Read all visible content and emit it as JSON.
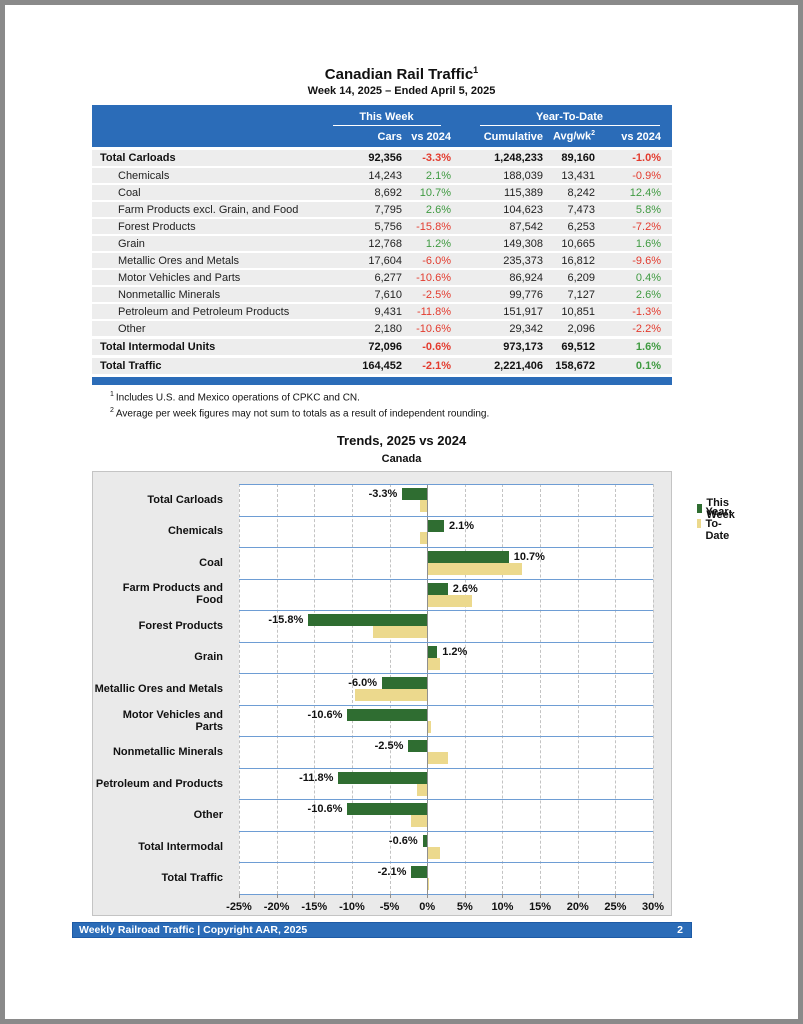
{
  "page": {
    "title": "Canadian Rail Traffic",
    "title_sup": "1",
    "subtitle": "Week 14, 2025 – Ended April 5, 2025"
  },
  "table": {
    "group_headers": {
      "this_week": "This Week",
      "ytd": "Year-To-Date"
    },
    "col_headers": {
      "cars": "Cars",
      "wk_vs": "vs 2024",
      "cumulative": "Cumulative",
      "avgwk": "Avg/wk",
      "avgwk_sup": "2",
      "ytd_vs": "vs 2024"
    },
    "rows": [
      {
        "label": "Total Carloads",
        "total": true,
        "cars": "92,356",
        "wk_pct": "-3.3%",
        "cumulative": "1,248,233",
        "avgwk": "89,160",
        "ytd_pct": "-1.0%"
      },
      {
        "label": "Chemicals",
        "total": false,
        "cars": "14,243",
        "wk_pct": "2.1%",
        "cumulative": "188,039",
        "avgwk": "13,431",
        "ytd_pct": "-0.9%"
      },
      {
        "label": "Coal",
        "total": false,
        "cars": "8,692",
        "wk_pct": "10.7%",
        "cumulative": "115,389",
        "avgwk": "8,242",
        "ytd_pct": "12.4%"
      },
      {
        "label": "Farm Products excl. Grain, and Food",
        "total": false,
        "cars": "7,795",
        "wk_pct": "2.6%",
        "cumulative": "104,623",
        "avgwk": "7,473",
        "ytd_pct": "5.8%"
      },
      {
        "label": "Forest Products",
        "total": false,
        "cars": "5,756",
        "wk_pct": "-15.8%",
        "cumulative": "87,542",
        "avgwk": "6,253",
        "ytd_pct": "-7.2%"
      },
      {
        "label": "Grain",
        "total": false,
        "cars": "12,768",
        "wk_pct": "1.2%",
        "cumulative": "149,308",
        "avgwk": "10,665",
        "ytd_pct": "1.6%"
      },
      {
        "label": "Metallic Ores and Metals",
        "total": false,
        "cars": "17,604",
        "wk_pct": "-6.0%",
        "cumulative": "235,373",
        "avgwk": "16,812",
        "ytd_pct": "-9.6%"
      },
      {
        "label": "Motor Vehicles and Parts",
        "total": false,
        "cars": "6,277",
        "wk_pct": "-10.6%",
        "cumulative": "86,924",
        "avgwk": "6,209",
        "ytd_pct": "0.4%"
      },
      {
        "label": "Nonmetallic Minerals",
        "total": false,
        "cars": "7,610",
        "wk_pct": "-2.5%",
        "cumulative": "99,776",
        "avgwk": "7,127",
        "ytd_pct": "2.6%"
      },
      {
        "label": "Petroleum and Petroleum Products",
        "total": false,
        "cars": "9,431",
        "wk_pct": "-11.8%",
        "cumulative": "151,917",
        "avgwk": "10,851",
        "ytd_pct": "-1.3%"
      },
      {
        "label": "Other",
        "total": false,
        "cars": "2,180",
        "wk_pct": "-10.6%",
        "cumulative": "29,342",
        "avgwk": "2,096",
        "ytd_pct": "-2.2%"
      },
      {
        "label": "Total Intermodal Units",
        "total": true,
        "cars": "72,096",
        "wk_pct": "-0.6%",
        "cumulative": "973,173",
        "avgwk": "69,512",
        "ytd_pct": "1.6%"
      },
      {
        "label": "Total Traffic",
        "total": true,
        "cars": "164,452",
        "wk_pct": "-2.1%",
        "cumulative": "2,221,406",
        "avgwk": "158,672",
        "ytd_pct": "0.1%"
      }
    ]
  },
  "footnotes": [
    {
      "sup": "1",
      "text": "Includes U.S. and Mexico operations of CPKC and CN."
    },
    {
      "sup": "2",
      "text": "Average per week figures may not sum to totals as a result of independent rounding."
    }
  ],
  "chart": {
    "title": "Trends, 2025 vs 2024",
    "subtitle": "Canada"
  },
  "chart_data": {
    "type": "bar",
    "orientation": "horizontal",
    "title": "Trends, 2025 vs 2024",
    "subtitle": "Canada",
    "categories": [
      "Total Carloads",
      "Chemicals",
      "Coal",
      "Farm Products and Food",
      "Forest Products",
      "Grain",
      "Metallic Ores and Metals",
      "Motor Vehicles and Parts",
      "Nonmetallic Minerals",
      "Petroleum and Products",
      "Other",
      "Total Intermodal",
      "Total Traffic"
    ],
    "series": [
      {
        "name": "This Week",
        "color": "#2f6d31",
        "values": [
          -3.3,
          2.1,
          10.7,
          2.6,
          -15.8,
          1.2,
          -6.0,
          -10.6,
          -2.5,
          -11.8,
          -10.6,
          -0.6,
          -2.1
        ]
      },
      {
        "name": "Year-To-Date",
        "color": "#ecd98d",
        "values": [
          -1.0,
          -0.9,
          12.4,
          5.8,
          -7.2,
          1.6,
          -9.6,
          0.4,
          2.6,
          -1.3,
          -2.2,
          1.6,
          0.1
        ]
      }
    ],
    "data_labels": [
      "-3.3%",
      "2.1%",
      "10.7%",
      "2.6%",
      "-15.8%",
      "1.2%",
      "-6.0%",
      "-10.6%",
      "-2.5%",
      "-11.8%",
      "-10.6%",
      "-0.6%",
      "-2.1%"
    ],
    "xlim": [
      -25,
      30
    ],
    "x_tick_labels": [
      "-25%",
      "-20%",
      "-15%",
      "-10%",
      "-5%",
      "0%",
      "5%",
      "10%",
      "15%",
      "20%",
      "25%",
      "30%"
    ],
    "x_tick_values": [
      -25,
      -20,
      -15,
      -10,
      -5,
      0,
      5,
      10,
      15,
      20,
      25,
      30
    ],
    "grid": "vertical-dashed",
    "legend_position": "top-right"
  },
  "footer": {
    "text": "Weekly Railroad Traffic | Copyright AAR, 2025",
    "page": "2"
  },
  "colors": {
    "accent_blue": "#2b6cb8",
    "positive_green": "#3f9a41",
    "negative_red": "#e33b2e",
    "bar_green": "#2f6d31",
    "bar_khaki": "#ecd98d",
    "chart_separator_blue": "#6e9dd4"
  }
}
